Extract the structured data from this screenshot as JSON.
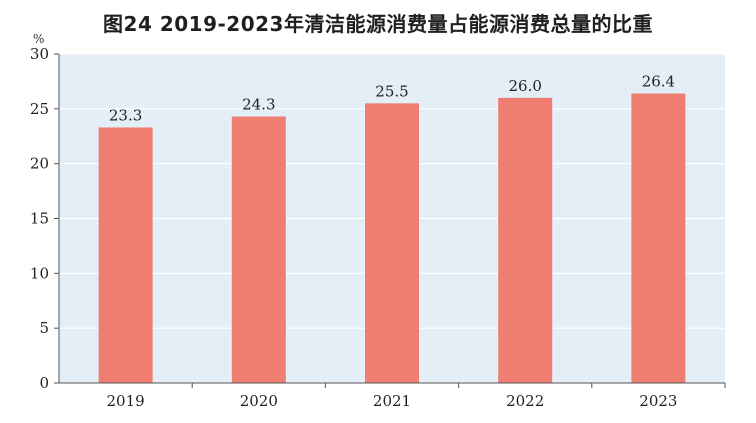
{
  "title": "图24   2019-2023年清洁能源消费量占能源消费总量的比重",
  "unit": "%",
  "colors": {
    "bar": "#ef7d72",
    "plot_bg": "#e3eef6",
    "grid": "#ffffff"
  },
  "chart_data": {
    "type": "bar",
    "title": "图24   2019-2023年清洁能源消费量占能源消费总量的比重",
    "categories": [
      "2019",
      "2020",
      "2021",
      "2022",
      "2023"
    ],
    "values": [
      23.3,
      24.3,
      25.5,
      26.0,
      26.4
    ],
    "value_labels": [
      "23.3",
      "24.3",
      "25.5",
      "26.0",
      "26.4"
    ],
    "ylabel": "%",
    "ylim": [
      0,
      30
    ],
    "yticks": [
      0,
      5,
      10,
      15,
      20,
      25,
      30
    ],
    "grid": true
  }
}
